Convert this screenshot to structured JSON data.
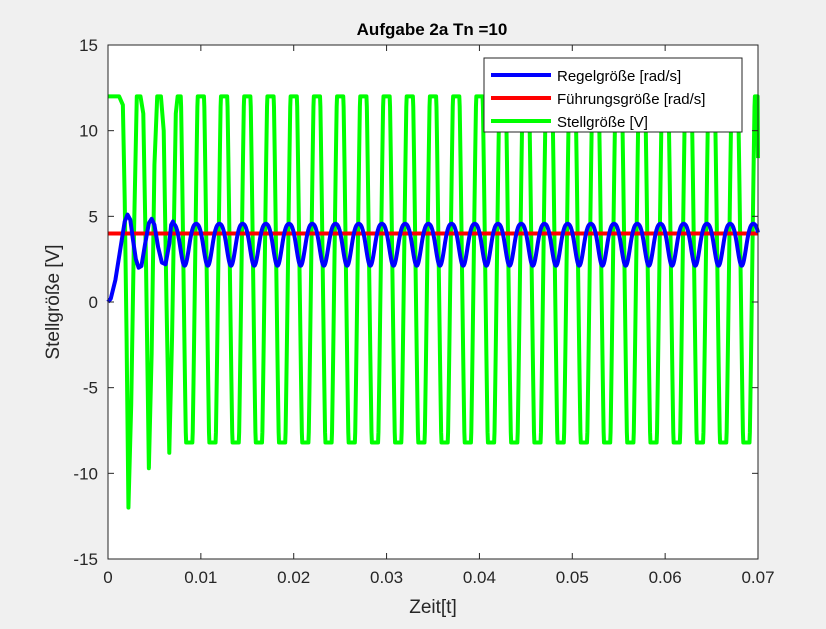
{
  "chart_data": {
    "type": "line",
    "title": "Aufgabe 2a Tn =10",
    "xlabel": "Zeit[t]",
    "ylabel": "Stellgröße [V]",
    "xlim": [
      0,
      0.07
    ],
    "ylim": [
      -15,
      15
    ],
    "xticks": [
      0,
      0.01,
      0.02,
      0.03,
      0.04,
      0.05,
      0.06,
      0.07
    ],
    "xtick_labels": [
      "0",
      "0.01",
      "0.02",
      "0.03",
      "0.04",
      "0.05",
      "0.06",
      "0.07"
    ],
    "yticks": [
      -15,
      -10,
      -5,
      0,
      5,
      10,
      15
    ],
    "ytick_labels": [
      "-15",
      "-10",
      "-5",
      "0",
      "5",
      "10",
      "15"
    ],
    "grid": false,
    "legend_position": "top-right",
    "series": [
      {
        "name": "Regelgröße [rad/s]",
        "color": "#0000ff",
        "x": [
          0,
          0.0003,
          0.0008,
          0.0013,
          0.0018,
          0.0021,
          0.0024,
          0.0027,
          0.003,
          0.0033,
          0.0036,
          0.004,
          0.0044,
          0.0047,
          0.005,
          0.0054,
          0.0058,
          0.0062,
          0.0066,
          0.0068,
          0.007
        ],
        "y": [
          0,
          0.2,
          1.3,
          3.0,
          4.7,
          5.1,
          4.8,
          3.6,
          2.5,
          2.0,
          2.1,
          3.4,
          4.6,
          4.85,
          4.5,
          3.2,
          2.3,
          2.2,
          3.4,
          4.5,
          4.7
        ],
        "period": 0.0025,
        "steady_max": 4.75,
        "steady_min": 2.3
      },
      {
        "name": "Führungsgröße [rad/s]",
        "color": "#ff0000",
        "x": [
          0,
          0.07
        ],
        "y": [
          4,
          4
        ]
      },
      {
        "name": "Stellgröße [V]",
        "color": "#00ff00",
        "x": [
          0,
          0.0012,
          0.0016,
          0.0018,
          0.002,
          0.0022,
          0.0025,
          0.0028,
          0.0031,
          0.0035,
          0.0038,
          0.0041,
          0.0044,
          0.0047,
          0.005,
          0.0053,
          0.0057,
          0.006,
          0.0063,
          0.0066,
          0.0069,
          0.0073,
          0.0075
        ],
        "y": [
          12,
          12,
          11.5,
          6,
          -2,
          -12,
          -6,
          4,
          12,
          12,
          11,
          2,
          -9.7,
          -3,
          8,
          12,
          12,
          10,
          0,
          -8.8,
          -2,
          11,
          12
        ],
        "period": 0.0025,
        "steady_max": 12,
        "steady_min": -8.2,
        "end_value": 8.4
      }
    ]
  }
}
